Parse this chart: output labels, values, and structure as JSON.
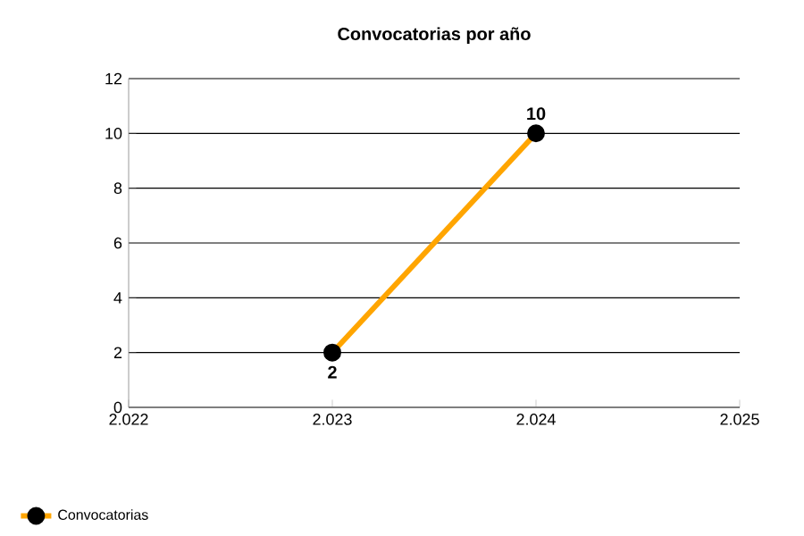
{
  "chart_data": {
    "type": "line",
    "title": "Convocatorias por año",
    "x": [
      2023,
      2024
    ],
    "series": [
      {
        "name": "Convocatorias",
        "color": "#ffa500",
        "values": [
          2,
          10
        ]
      }
    ],
    "xlim": [
      2022,
      2025
    ],
    "xticks": [
      {
        "value": 2022,
        "label": "2.022"
      },
      {
        "value": 2023,
        "label": "2.023"
      },
      {
        "value": 2024,
        "label": "2.024"
      },
      {
        "value": 2025,
        "label": "2.025"
      }
    ],
    "ylim": [
      0,
      12
    ],
    "yticks": [
      0,
      2,
      4,
      6,
      8,
      10,
      12
    ],
    "grid": "y",
    "legend": "bottom left",
    "marker": "circle",
    "data_labels": true
  }
}
